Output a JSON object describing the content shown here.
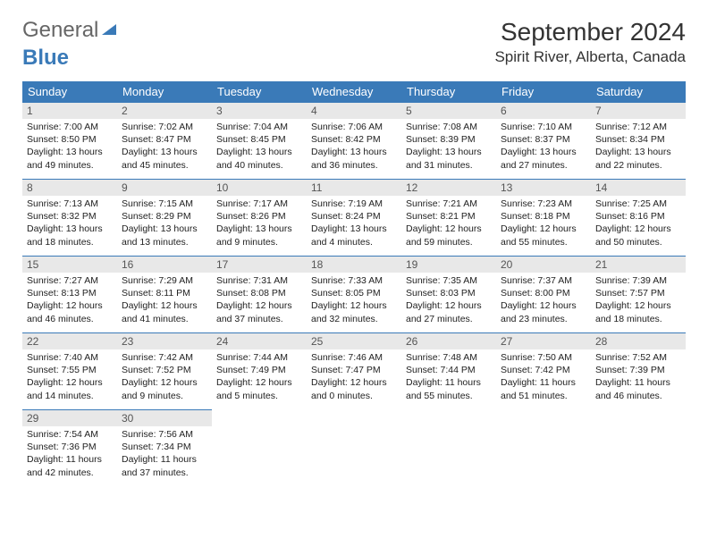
{
  "logo": {
    "text1": "General",
    "text2": "Blue"
  },
  "title": "September 2024",
  "location": "Spirit River, Alberta, Canada",
  "weekdays": [
    "Sunday",
    "Monday",
    "Tuesday",
    "Wednesday",
    "Thursday",
    "Friday",
    "Saturday"
  ],
  "header_bg": "#3a7ab8",
  "days": [
    {
      "n": "1",
      "sunrise": "7:00 AM",
      "sunset": "8:50 PM",
      "daylight": "13 hours and 49 minutes."
    },
    {
      "n": "2",
      "sunrise": "7:02 AM",
      "sunset": "8:47 PM",
      "daylight": "13 hours and 45 minutes."
    },
    {
      "n": "3",
      "sunrise": "7:04 AM",
      "sunset": "8:45 PM",
      "daylight": "13 hours and 40 minutes."
    },
    {
      "n": "4",
      "sunrise": "7:06 AM",
      "sunset": "8:42 PM",
      "daylight": "13 hours and 36 minutes."
    },
    {
      "n": "5",
      "sunrise": "7:08 AM",
      "sunset": "8:39 PM",
      "daylight": "13 hours and 31 minutes."
    },
    {
      "n": "6",
      "sunrise": "7:10 AM",
      "sunset": "8:37 PM",
      "daylight": "13 hours and 27 minutes."
    },
    {
      "n": "7",
      "sunrise": "7:12 AM",
      "sunset": "8:34 PM",
      "daylight": "13 hours and 22 minutes."
    },
    {
      "n": "8",
      "sunrise": "7:13 AM",
      "sunset": "8:32 PM",
      "daylight": "13 hours and 18 minutes."
    },
    {
      "n": "9",
      "sunrise": "7:15 AM",
      "sunset": "8:29 PM",
      "daylight": "13 hours and 13 minutes."
    },
    {
      "n": "10",
      "sunrise": "7:17 AM",
      "sunset": "8:26 PM",
      "daylight": "13 hours and 9 minutes."
    },
    {
      "n": "11",
      "sunrise": "7:19 AM",
      "sunset": "8:24 PM",
      "daylight": "13 hours and 4 minutes."
    },
    {
      "n": "12",
      "sunrise": "7:21 AM",
      "sunset": "8:21 PM",
      "daylight": "12 hours and 59 minutes."
    },
    {
      "n": "13",
      "sunrise": "7:23 AM",
      "sunset": "8:18 PM",
      "daylight": "12 hours and 55 minutes."
    },
    {
      "n": "14",
      "sunrise": "7:25 AM",
      "sunset": "8:16 PM",
      "daylight": "12 hours and 50 minutes."
    },
    {
      "n": "15",
      "sunrise": "7:27 AM",
      "sunset": "8:13 PM",
      "daylight": "12 hours and 46 minutes."
    },
    {
      "n": "16",
      "sunrise": "7:29 AM",
      "sunset": "8:11 PM",
      "daylight": "12 hours and 41 minutes."
    },
    {
      "n": "17",
      "sunrise": "7:31 AM",
      "sunset": "8:08 PM",
      "daylight": "12 hours and 37 minutes."
    },
    {
      "n": "18",
      "sunrise": "7:33 AM",
      "sunset": "8:05 PM",
      "daylight": "12 hours and 32 minutes."
    },
    {
      "n": "19",
      "sunrise": "7:35 AM",
      "sunset": "8:03 PM",
      "daylight": "12 hours and 27 minutes."
    },
    {
      "n": "20",
      "sunrise": "7:37 AM",
      "sunset": "8:00 PM",
      "daylight": "12 hours and 23 minutes."
    },
    {
      "n": "21",
      "sunrise": "7:39 AM",
      "sunset": "7:57 PM",
      "daylight": "12 hours and 18 minutes."
    },
    {
      "n": "22",
      "sunrise": "7:40 AM",
      "sunset": "7:55 PM",
      "daylight": "12 hours and 14 minutes."
    },
    {
      "n": "23",
      "sunrise": "7:42 AM",
      "sunset": "7:52 PM",
      "daylight": "12 hours and 9 minutes."
    },
    {
      "n": "24",
      "sunrise": "7:44 AM",
      "sunset": "7:49 PM",
      "daylight": "12 hours and 5 minutes."
    },
    {
      "n": "25",
      "sunrise": "7:46 AM",
      "sunset": "7:47 PM",
      "daylight": "12 hours and 0 minutes."
    },
    {
      "n": "26",
      "sunrise": "7:48 AM",
      "sunset": "7:44 PM",
      "daylight": "11 hours and 55 minutes."
    },
    {
      "n": "27",
      "sunrise": "7:50 AM",
      "sunset": "7:42 PM",
      "daylight": "11 hours and 51 minutes."
    },
    {
      "n": "28",
      "sunrise": "7:52 AM",
      "sunset": "7:39 PM",
      "daylight": "11 hours and 46 minutes."
    },
    {
      "n": "29",
      "sunrise": "7:54 AM",
      "sunset": "7:36 PM",
      "daylight": "11 hours and 42 minutes."
    },
    {
      "n": "30",
      "sunrise": "7:56 AM",
      "sunset": "7:34 PM",
      "daylight": "11 hours and 37 minutes."
    }
  ],
  "labels": {
    "sunrise": "Sunrise:",
    "sunset": "Sunset:",
    "daylight": "Daylight:"
  }
}
